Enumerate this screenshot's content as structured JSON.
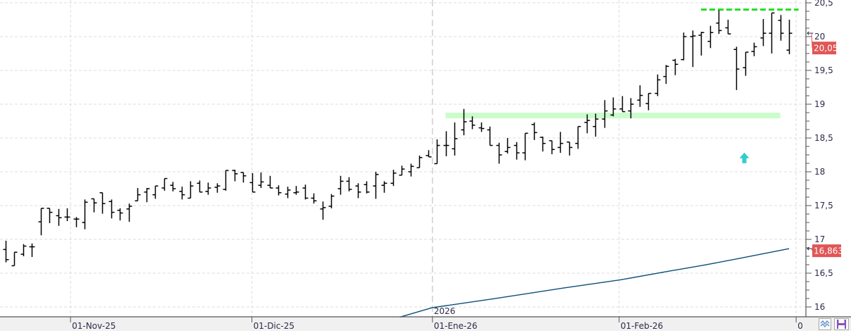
{
  "chart_data": {
    "type": "ohlc",
    "title": "",
    "ylim": [
      16,
      20.5
    ],
    "yticks": [
      "20,5",
      "20",
      "19,5",
      "19",
      "18,5",
      "18",
      "17,5",
      "17",
      "16,5",
      "16"
    ],
    "ytick_values": [
      20.5,
      20,
      19.5,
      19,
      18.5,
      18,
      17.5,
      17,
      16.5,
      16
    ],
    "xticks": [
      "01-Nov-25",
      "01-Dic-25",
      "01-Ene-26",
      "01-Feb-26"
    ],
    "year_label": "2026",
    "end_marker_label": "0",
    "grid": true,
    "bars_ohlc": [
      [
        16.85,
        16.98,
        16.66,
        16.7
      ],
      [
        16.61,
        16.81,
        16.61,
        16.81
      ],
      [
        16.78,
        16.93,
        16.75,
        16.9
      ],
      [
        16.89,
        16.94,
        16.74,
        16.89
      ],
      [
        17.26,
        17.46,
        17.06,
        17.46
      ],
      [
        17.46,
        17.46,
        17.24,
        17.4
      ],
      [
        17.35,
        17.45,
        17.2,
        17.32
      ],
      [
        17.33,
        17.46,
        17.27,
        17.33
      ],
      [
        17.3,
        17.33,
        17.18,
        17.3
      ],
      [
        17.25,
        17.59,
        17.15,
        17.55
      ],
      [
        17.6,
        17.6,
        17.4,
        17.54
      ],
      [
        17.69,
        17.69,
        17.38,
        17.53
      ],
      [
        17.56,
        17.59,
        17.31,
        17.4
      ],
      [
        17.43,
        17.46,
        17.28,
        17.39
      ],
      [
        17.45,
        17.53,
        17.26,
        17.49
      ],
      [
        17.57,
        17.76,
        17.57,
        17.66
      ],
      [
        17.7,
        17.76,
        17.55,
        17.75
      ],
      [
        17.66,
        17.79,
        17.6,
        17.79
      ],
      [
        17.76,
        17.9,
        17.72,
        17.9
      ],
      [
        17.8,
        17.85,
        17.71,
        17.75
      ],
      [
        17.71,
        17.78,
        17.59,
        17.66
      ],
      [
        17.61,
        17.86,
        17.61,
        17.79
      ],
      [
        17.83,
        17.87,
        17.7,
        17.7
      ],
      [
        17.71,
        17.84,
        17.66,
        17.76
      ],
      [
        17.77,
        17.83,
        17.69,
        17.79
      ],
      [
        17.74,
        18.02,
        17.72,
        18.02
      ],
      [
        18.02,
        18.03,
        17.86,
        17.97
      ],
      [
        17.99,
        17.99,
        17.84,
        17.94
      ],
      [
        17.84,
        17.98,
        17.7,
        17.7
      ],
      [
        17.8,
        17.99,
        17.76,
        17.85
      ],
      [
        17.8,
        17.94,
        17.76,
        17.76
      ],
      [
        17.76,
        17.8,
        17.65,
        17.69
      ],
      [
        17.67,
        17.78,
        17.61,
        17.73
      ],
      [
        17.69,
        17.79,
        17.66,
        17.7
      ],
      [
        17.76,
        17.81,
        17.59,
        17.61
      ],
      [
        17.61,
        17.68,
        17.53,
        17.57
      ],
      [
        17.45,
        17.56,
        17.29,
        17.47
      ],
      [
        17.49,
        17.67,
        17.46,
        17.64
      ],
      [
        17.75,
        17.94,
        17.66,
        17.86
      ],
      [
        17.86,
        17.92,
        17.71,
        17.74
      ],
      [
        17.79,
        17.83,
        17.61,
        17.7
      ],
      [
        17.81,
        17.86,
        17.68,
        17.7
      ],
      [
        17.79,
        18.0,
        17.6,
        17.96
      ],
      [
        17.8,
        17.86,
        17.69,
        17.83
      ],
      [
        17.83,
        18.03,
        17.79,
        17.98
      ],
      [
        17.95,
        18.09,
        17.95,
        18.04
      ],
      [
        18.0,
        18.12,
        17.93,
        18.08
      ],
      [
        18.06,
        18.24,
        18.06,
        18.21
      ],
      [
        18.24,
        18.32,
        18.22,
        18.22
      ],
      [
        18.12,
        18.48,
        18.12,
        18.39
      ],
      [
        18.39,
        18.6,
        18.23,
        18.39
      ],
      [
        18.34,
        18.73,
        18.24,
        18.49
      ],
      [
        18.62,
        18.93,
        18.54,
        18.74
      ],
      [
        18.75,
        18.82,
        18.63,
        18.69
      ],
      [
        18.65,
        18.73,
        18.59,
        18.64
      ],
      [
        18.62,
        18.67,
        18.39,
        18.39
      ],
      [
        18.39,
        18.43,
        18.12,
        18.25
      ],
      [
        18.3,
        18.5,
        18.27,
        18.36
      ],
      [
        18.39,
        18.44,
        18.18,
        18.28
      ],
      [
        18.28,
        18.57,
        18.17,
        18.57
      ],
      [
        18.7,
        18.73,
        18.47,
        18.58
      ],
      [
        18.51,
        18.52,
        18.3,
        18.42
      ],
      [
        18.46,
        18.46,
        18.26,
        18.33
      ],
      [
        18.36,
        18.59,
        18.28,
        18.42
      ],
      [
        18.44,
        18.44,
        18.24,
        18.36
      ],
      [
        18.42,
        18.67,
        18.34,
        18.67
      ],
      [
        18.73,
        18.85,
        18.57,
        18.76
      ],
      [
        18.67,
        18.86,
        18.52,
        18.78
      ],
      [
        18.78,
        19.06,
        18.65,
        18.9
      ],
      [
        18.84,
        19.1,
        18.82,
        18.93
      ],
      [
        18.93,
        19.12,
        18.89,
        18.89
      ],
      [
        18.9,
        19.09,
        18.79,
        19.0
      ],
      [
        19.06,
        19.28,
        18.96,
        19.13
      ],
      [
        19.01,
        19.16,
        18.91,
        19.16
      ],
      [
        19.16,
        19.44,
        19.12,
        19.36
      ],
      [
        19.41,
        19.58,
        19.3,
        19.56
      ],
      [
        19.65,
        19.67,
        19.43,
        19.59
      ],
      [
        19.66,
        20.06,
        19.65,
        20.0
      ],
      [
        20.0,
        20.09,
        19.55,
        20.01
      ],
      [
        20.02,
        20.07,
        19.72,
        20.06
      ],
      [
        19.93,
        20.16,
        19.83,
        20.06
      ],
      [
        20.2,
        20.39,
        20.04,
        20.09
      ],
      [
        20.13,
        20.25,
        20.04,
        20.04
      ],
      [
        19.81,
        19.85,
        19.21,
        19.52
      ],
      [
        19.54,
        19.77,
        19.42,
        19.77
      ],
      [
        19.78,
        19.91,
        19.71,
        19.85
      ],
      [
        19.98,
        20.26,
        19.86,
        20.05
      ],
      [
        20.05,
        20.35,
        19.75,
        20.35
      ],
      [
        20.24,
        20.32,
        19.94,
        20.05
      ],
      [
        19.8,
        20.25,
        19.74,
        20.05
      ]
    ],
    "moving_average": [
      [
        44.8,
        15.85
      ],
      [
        48.5,
        15.99
      ],
      [
        55.4,
        16.12
      ],
      [
        63.4,
        16.28
      ],
      [
        69.8,
        16.4
      ],
      [
        75.4,
        16.53
      ],
      [
        79.4,
        16.62
      ],
      [
        83.4,
        16.72
      ],
      [
        89,
        16.863
      ]
    ],
    "support_zone": {
      "from_bar": 50,
      "to_bar": 88,
      "low": 18.79,
      "high": 18.875,
      "color": "#ccfccc"
    },
    "resistance_line": {
      "from_bar": 79,
      "to_bar": 90,
      "value": 20.4,
      "color": "#22dd22"
    },
    "signal_arrow": {
      "bar": 84,
      "value": 18.2,
      "direction": "up",
      "color": "#33cccc"
    },
    "price_tags": [
      {
        "label": "20,05",
        "value": 20.05,
        "color": "#e05656"
      },
      {
        "label": "16,863",
        "value": 16.863,
        "color": "#e05656"
      }
    ],
    "bar_color": "#000000",
    "ma_color": "#0b4f7a"
  },
  "toolbar": {
    "buttons": [
      {
        "name": "chart-style-button",
        "icon": "wave-chart-icon"
      },
      {
        "name": "save-button",
        "icon": "floppy-disk-icon",
        "color": "#8a4fc0"
      }
    ]
  }
}
